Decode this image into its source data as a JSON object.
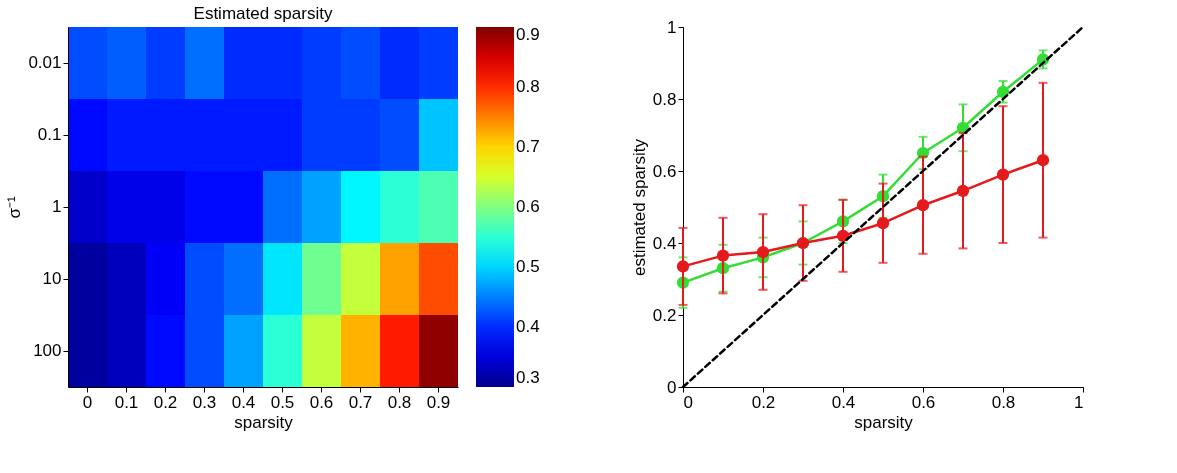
{
  "chart_data": [
    {
      "type": "heatmap",
      "title": "Estimated sparsity",
      "xlabel": "sparsity",
      "ylabel": "σ⁻¹",
      "categories": [
        "0",
        "0.1",
        "0.2",
        "0.3",
        "0.4",
        "0.5",
        "0.6",
        "0.7",
        "0.8",
        "0.9"
      ],
      "y_categories": [
        "0.01",
        "0.1",
        "1",
        "10",
        "100"
      ],
      "cells": [
        [
          0.42,
          0.43,
          0.41,
          0.44,
          0.4,
          0.4,
          0.41,
          0.42,
          0.4,
          0.41
        ],
        [
          0.38,
          0.39,
          0.39,
          0.39,
          0.39,
          0.39,
          0.41,
          0.41,
          0.42,
          0.49
        ],
        [
          0.34,
          0.36,
          0.36,
          0.38,
          0.38,
          0.44,
          0.47,
          0.52,
          0.55,
          0.57
        ],
        [
          0.31,
          0.33,
          0.37,
          0.42,
          0.44,
          0.51,
          0.59,
          0.64,
          0.73,
          0.78
        ],
        [
          0.31,
          0.33,
          0.38,
          0.42,
          0.47,
          0.55,
          0.64,
          0.72,
          0.81,
          0.89
        ]
      ],
      "clim": [
        0.3,
        0.9
      ],
      "cticks": [
        0.3,
        0.4,
        0.5,
        0.6,
        0.7,
        0.8,
        0.9
      ]
    },
    {
      "type": "line",
      "xlabel": "sparsity",
      "ylabel": "estimated sparsity",
      "x": [
        0,
        0.1,
        0.2,
        0.3,
        0.4,
        0.5,
        0.6,
        0.7,
        0.8,
        0.9
      ],
      "series": [
        {
          "color": "#33dd33",
          "marker": "circle",
          "values": [
            0.29,
            0.33,
            0.36,
            0.4,
            0.46,
            0.53,
            0.65,
            0.72,
            0.82,
            0.91
          ],
          "errors": [
            0.07,
            0.065,
            0.055,
            0.06,
            0.06,
            0.06,
            0.045,
            0.065,
            0.03,
            0.025
          ]
        },
        {
          "color": "#e41a1c",
          "marker": "circle",
          "values": [
            0.335,
            0.365,
            0.375,
            0.4,
            0.42,
            0.455,
            0.505,
            0.545,
            0.59,
            0.63
          ],
          "errors": [
            0.107,
            0.105,
            0.105,
            0.105,
            0.1,
            0.11,
            0.135,
            0.16,
            0.19,
            0.215
          ]
        },
        {
          "type": "line",
          "color": "#000000",
          "marker": "none",
          "line_style": "dashed",
          "x": [
            0,
            1
          ],
          "values": [
            0,
            1
          ]
        }
      ],
      "xlim": [
        0,
        1
      ],
      "ylim": [
        0,
        1
      ],
      "xticks": [
        0,
        0.2,
        0.4,
        0.6,
        0.8,
        1
      ],
      "yticks": [
        0,
        0.2,
        0.4,
        0.6,
        0.8,
        1
      ],
      "grid": false
    }
  ]
}
